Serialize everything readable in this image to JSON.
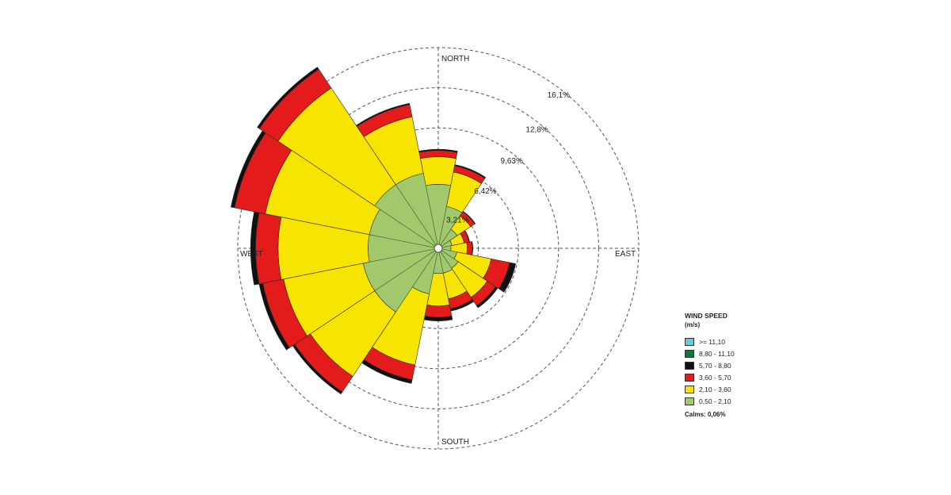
{
  "chart_data": {
    "type": "windrose",
    "unit": "%",
    "rings": {
      "values": [
        3.21,
        6.42,
        9.63,
        12.84,
        16.05
      ],
      "labels": [
        "3,21%",
        "6,42%",
        "9,63%",
        "12,8%",
        "16,1%"
      ]
    },
    "directions": {
      "north": "NORTH",
      "east": "EAST",
      "south": "SOUTH",
      "west": "WEST"
    },
    "legend": {
      "title": "WIND SPEED",
      "unit": "(m/s)",
      "items": [
        {
          "label": ">= 11,10",
          "color": "#6cc5d9"
        },
        {
          "label": "8,80 - 11,10",
          "color": "#0a7a3a"
        },
        {
          "label": "5,70 - 8,80",
          "color": "#111111"
        },
        {
          "label": "3,60 - 5,70",
          "color": "#e31b1b"
        },
        {
          "label": "2,10 - 3,60",
          "color": "#f7e400"
        },
        {
          "label": "0,50 - 2,10",
          "color": "#a2c86c"
        }
      ],
      "calms": "Calms: 0,06%"
    },
    "sector_angles_deg": [
      0,
      22.5,
      45,
      67.5,
      90,
      112.5,
      135,
      157.5,
      180,
      202.5,
      225,
      247.5,
      270,
      292.5,
      315,
      337.5
    ],
    "series": [
      {
        "speed": "0,50 - 2,10",
        "values": [
          5.0,
          3.3,
          1.7,
          1.0,
          0.9,
          1.4,
          1.8,
          1.9,
          1.9,
          3.6,
          6.0,
          6.0,
          5.5,
          5.5,
          6.0,
          6.0
        ]
      },
      {
        "speed": "2,10 - 3,60",
        "values": [
          2.2,
          2.8,
          1.3,
          1.0,
          1.3,
          2.8,
          2.8,
          2.1,
          2.6,
          5.8,
          6.2,
          6.5,
          7.2,
          8.5,
          9.3,
          4.6
        ]
      },
      {
        "speed": "3,60 - 5,70",
        "values": [
          0.5,
          0.5,
          0.4,
          0.4,
          0.4,
          1.5,
          0.8,
          0.8,
          0.9,
          1.2,
          1.5,
          1.7,
          1.8,
          2.5,
          1.8,
          1.0
        ]
      },
      {
        "speed": "5,70 - 8,80",
        "values": [
          0.1,
          0.1,
          0.05,
          0.05,
          0.05,
          0.5,
          0.2,
          0.2,
          0.3,
          0.3,
          0.2,
          0.3,
          0.4,
          0.3,
          0.2,
          0.1
        ]
      },
      {
        "speed": "8,80 - 11,10",
        "values": [
          0,
          0,
          0,
          0,
          0,
          0,
          0,
          0,
          0,
          0,
          0,
          0,
          0,
          0,
          0,
          0
        ]
      },
      {
        "speed": ">= 11,10",
        "values": [
          0,
          0,
          0,
          0,
          0,
          0,
          0,
          0,
          0,
          0,
          0,
          0,
          0,
          0,
          0,
          0
        ]
      }
    ]
  }
}
